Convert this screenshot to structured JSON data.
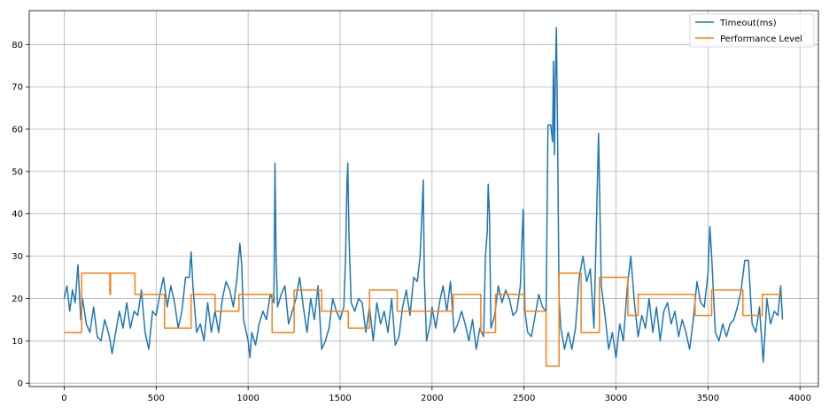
{
  "chart_data": {
    "type": "line",
    "title": "",
    "xlabel": "",
    "ylabel": "",
    "xlim": [
      -190,
      4100
    ],
    "ylim": [
      -0.8,
      88
    ],
    "grid": true,
    "legend_placement": "top-right",
    "x_ticks": [
      0,
      500,
      1000,
      1500,
      2000,
      2500,
      3000,
      3500,
      4000
    ],
    "y_ticks": [
      0,
      10,
      20,
      30,
      40,
      50,
      60,
      70,
      80
    ],
    "series": [
      {
        "name": "Timeout(ms)",
        "color": "#1f77b4",
        "points": [
          [
            0,
            20
          ],
          [
            15,
            23
          ],
          [
            30,
            17
          ],
          [
            45,
            22
          ],
          [
            60,
            19
          ],
          [
            75,
            28
          ],
          [
            90,
            15
          ],
          [
            100,
            20
          ],
          [
            120,
            14
          ],
          [
            140,
            12
          ],
          [
            160,
            18
          ],
          [
            180,
            11
          ],
          [
            200,
            10
          ],
          [
            220,
            15
          ],
          [
            240,
            12
          ],
          [
            250,
            10
          ],
          [
            260,
            7
          ],
          [
            280,
            12
          ],
          [
            300,
            17
          ],
          [
            320,
            13
          ],
          [
            340,
            19
          ],
          [
            360,
            13
          ],
          [
            380,
            17
          ],
          [
            400,
            16
          ],
          [
            420,
            22
          ],
          [
            440,
            12
          ],
          [
            460,
            8
          ],
          [
            480,
            17
          ],
          [
            500,
            16
          ],
          [
            520,
            21
          ],
          [
            540,
            25
          ],
          [
            560,
            18
          ],
          [
            580,
            23
          ],
          [
            600,
            19
          ],
          [
            620,
            13
          ],
          [
            640,
            17
          ],
          [
            660,
            25
          ],
          [
            680,
            25
          ],
          [
            690,
            31
          ],
          [
            700,
            23
          ],
          [
            720,
            12
          ],
          [
            740,
            14
          ],
          [
            760,
            10
          ],
          [
            780,
            19
          ],
          [
            800,
            12
          ],
          [
            820,
            17
          ],
          [
            840,
            12
          ],
          [
            860,
            20
          ],
          [
            880,
            24
          ],
          [
            900,
            22
          ],
          [
            920,
            18
          ],
          [
            940,
            25
          ],
          [
            955,
            33
          ],
          [
            965,
            28
          ],
          [
            975,
            15
          ],
          [
            990,
            12
          ],
          [
            1000,
            10
          ],
          [
            1010,
            6
          ],
          [
            1020,
            12
          ],
          [
            1040,
            9
          ],
          [
            1060,
            14
          ],
          [
            1080,
            17
          ],
          [
            1100,
            15
          ],
          [
            1120,
            21
          ],
          [
            1140,
            19
          ],
          [
            1146,
            52
          ],
          [
            1152,
            30
          ],
          [
            1160,
            18
          ],
          [
            1180,
            21
          ],
          [
            1200,
            23
          ],
          [
            1220,
            14
          ],
          [
            1240,
            17
          ],
          [
            1260,
            20
          ],
          [
            1280,
            25
          ],
          [
            1300,
            18
          ],
          [
            1320,
            12
          ],
          [
            1340,
            20
          ],
          [
            1360,
            15
          ],
          [
            1380,
            23
          ],
          [
            1400,
            8
          ],
          [
            1420,
            10
          ],
          [
            1440,
            13
          ],
          [
            1460,
            20
          ],
          [
            1480,
            17
          ],
          [
            1500,
            15
          ],
          [
            1520,
            18
          ],
          [
            1530,
            30
          ],
          [
            1537,
            47
          ],
          [
            1542,
            52
          ],
          [
            1548,
            35
          ],
          [
            1560,
            19
          ],
          [
            1580,
            17
          ],
          [
            1600,
            20
          ],
          [
            1620,
            19
          ],
          [
            1640,
            12
          ],
          [
            1660,
            18
          ],
          [
            1680,
            10
          ],
          [
            1700,
            19
          ],
          [
            1720,
            14
          ],
          [
            1740,
            17
          ],
          [
            1760,
            12
          ],
          [
            1780,
            20
          ],
          [
            1800,
            9
          ],
          [
            1820,
            11
          ],
          [
            1840,
            18
          ],
          [
            1860,
            22
          ],
          [
            1880,
            16
          ],
          [
            1900,
            25
          ],
          [
            1920,
            24
          ],
          [
            1935,
            30
          ],
          [
            1945,
            40
          ],
          [
            1952,
            48
          ],
          [
            1958,
            25
          ],
          [
            1970,
            10
          ],
          [
            1990,
            14
          ],
          [
            2000,
            18
          ],
          [
            2020,
            13
          ],
          [
            2040,
            19
          ],
          [
            2060,
            23
          ],
          [
            2080,
            17
          ],
          [
            2100,
            24
          ],
          [
            2120,
            12
          ],
          [
            2140,
            14
          ],
          [
            2160,
            17
          ],
          [
            2180,
            14
          ],
          [
            2200,
            10
          ],
          [
            2220,
            15
          ],
          [
            2240,
            8
          ],
          [
            2260,
            13
          ],
          [
            2280,
            11
          ],
          [
            2290,
            30
          ],
          [
            2300,
            36
          ],
          [
            2305,
            47
          ],
          [
            2312,
            40
          ],
          [
            2320,
            13
          ],
          [
            2340,
            16
          ],
          [
            2360,
            23
          ],
          [
            2380,
            19
          ],
          [
            2400,
            22
          ],
          [
            2420,
            20
          ],
          [
            2440,
            16
          ],
          [
            2460,
            17
          ],
          [
            2480,
            23
          ],
          [
            2495,
            41
          ],
          [
            2505,
            17
          ],
          [
            2520,
            12
          ],
          [
            2540,
            11
          ],
          [
            2560,
            16
          ],
          [
            2580,
            21
          ],
          [
            2600,
            18
          ],
          [
            2620,
            17
          ],
          [
            2630,
            61
          ],
          [
            2645,
            61
          ],
          [
            2655,
            57
          ],
          [
            2660,
            76
          ],
          [
            2665,
            54
          ],
          [
            2670,
            72
          ],
          [
            2676,
            84
          ],
          [
            2682,
            60
          ],
          [
            2690,
            20
          ],
          [
            2700,
            13
          ],
          [
            2720,
            8
          ],
          [
            2740,
            12
          ],
          [
            2760,
            8
          ],
          [
            2780,
            13
          ],
          [
            2800,
            25
          ],
          [
            2820,
            30
          ],
          [
            2840,
            24
          ],
          [
            2860,
            27
          ],
          [
            2880,
            13
          ],
          [
            2895,
            40
          ],
          [
            2905,
            59
          ],
          [
            2912,
            42
          ],
          [
            2920,
            23
          ],
          [
            2940,
            16
          ],
          [
            2960,
            8
          ],
          [
            2980,
            12
          ],
          [
            3000,
            6
          ],
          [
            3020,
            14
          ],
          [
            3040,
            10
          ],
          [
            3060,
            22
          ],
          [
            3070,
            26
          ],
          [
            3080,
            30
          ],
          [
            3100,
            19
          ],
          [
            3120,
            11
          ],
          [
            3140,
            16
          ],
          [
            3160,
            13
          ],
          [
            3180,
            20
          ],
          [
            3200,
            12
          ],
          [
            3220,
            18
          ],
          [
            3240,
            10
          ],
          [
            3260,
            17
          ],
          [
            3280,
            19
          ],
          [
            3300,
            14
          ],
          [
            3320,
            17
          ],
          [
            3340,
            11
          ],
          [
            3360,
            15
          ],
          [
            3380,
            12
          ],
          [
            3400,
            8
          ],
          [
            3420,
            15
          ],
          [
            3440,
            24
          ],
          [
            3460,
            19
          ],
          [
            3480,
            18
          ],
          [
            3500,
            26
          ],
          [
            3510,
            37
          ],
          [
            3520,
            30
          ],
          [
            3540,
            12
          ],
          [
            3560,
            10
          ],
          [
            3580,
            14
          ],
          [
            3600,
            11
          ],
          [
            3620,
            14
          ],
          [
            3640,
            15
          ],
          [
            3660,
            18
          ],
          [
            3680,
            22
          ],
          [
            3700,
            29
          ],
          [
            3720,
            29
          ],
          [
            3740,
            14
          ],
          [
            3760,
            12
          ],
          [
            3780,
            18
          ],
          [
            3800,
            5
          ],
          [
            3810,
            12
          ],
          [
            3820,
            20
          ],
          [
            3840,
            14
          ],
          [
            3860,
            17
          ],
          [
            3880,
            16
          ],
          [
            3895,
            23
          ],
          [
            3905,
            15
          ]
        ]
      },
      {
        "name": "Performance Level",
        "color": "#ff7f0e",
        "points": [
          [
            0,
            12
          ],
          [
            95,
            12
          ],
          [
            95,
            26
          ],
          [
            248,
            26
          ],
          [
            248,
            21
          ],
          [
            252,
            21
          ],
          [
            252,
            26
          ],
          [
            385,
            26
          ],
          [
            385,
            21
          ],
          [
            545,
            21
          ],
          [
            545,
            13
          ],
          [
            690,
            13
          ],
          [
            690,
            21
          ],
          [
            820,
            21
          ],
          [
            820,
            17
          ],
          [
            950,
            17
          ],
          [
            950,
            21
          ],
          [
            1130,
            21
          ],
          [
            1130,
            12
          ],
          [
            1250,
            12
          ],
          [
            1250,
            22
          ],
          [
            1400,
            22
          ],
          [
            1400,
            17
          ],
          [
            1545,
            17
          ],
          [
            1545,
            13
          ],
          [
            1660,
            13
          ],
          [
            1660,
            22
          ],
          [
            1810,
            22
          ],
          [
            1810,
            17
          ],
          [
            2115,
            17
          ],
          [
            2115,
            21
          ],
          [
            2265,
            21
          ],
          [
            2265,
            12
          ],
          [
            2345,
            12
          ],
          [
            2345,
            21
          ],
          [
            2500,
            21
          ],
          [
            2500,
            17
          ],
          [
            2620,
            17
          ],
          [
            2620,
            4
          ],
          [
            2690,
            4
          ],
          [
            2690,
            26
          ],
          [
            2810,
            26
          ],
          [
            2810,
            12
          ],
          [
            2910,
            12
          ],
          [
            2910,
            25
          ],
          [
            3065,
            25
          ],
          [
            3065,
            16
          ],
          [
            3120,
            16
          ],
          [
            3120,
            21
          ],
          [
            3430,
            21
          ],
          [
            3430,
            16
          ],
          [
            3520,
            16
          ],
          [
            3520,
            22
          ],
          [
            3690,
            22
          ],
          [
            3690,
            16
          ],
          [
            3795,
            16
          ],
          [
            3795,
            21
          ],
          [
            3905,
            21
          ]
        ]
      }
    ]
  }
}
